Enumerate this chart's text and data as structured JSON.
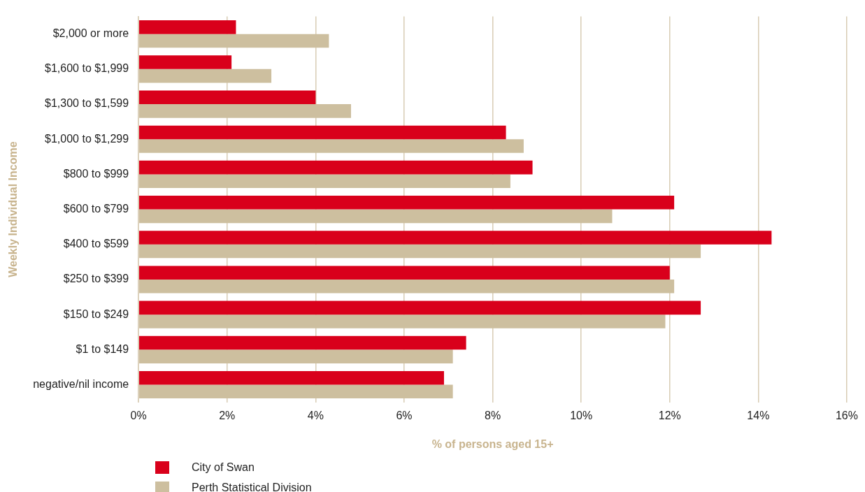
{
  "chart_data": {
    "type": "bar",
    "orientation": "horizontal",
    "ylabel": "Weekly Individual Income",
    "xlabel": "% of persons aged 15+",
    "categories": [
      "$2,000 or more",
      "$1,600 to $1,999",
      "$1,300 to $1,599",
      "$1,000 to $1,299",
      "$800 to $999",
      "$600 to $799",
      "$400 to $599",
      "$250 to $399",
      "$150 to $249",
      "$1 to $149",
      "negative/nil income"
    ],
    "series": [
      {
        "name": "City of Swan",
        "color": "#d9001b",
        "values": [
          2.2,
          2.1,
          4.0,
          8.3,
          8.9,
          12.1,
          14.3,
          12.0,
          12.7,
          7.4,
          6.9
        ]
      },
      {
        "name": "Perth Statistical Division",
        "color": "#cdbf9f",
        "values": [
          4.3,
          3.0,
          4.8,
          8.7,
          8.4,
          10.7,
          12.7,
          12.1,
          11.9,
          7.1,
          7.1
        ]
      }
    ],
    "xlim": [
      0,
      16
    ],
    "xticks": [
      {
        "value": 0,
        "label": "0%"
      },
      {
        "value": 2,
        "label": "2%"
      },
      {
        "value": 4,
        "label": "4%"
      },
      {
        "value": 6,
        "label": "6%"
      },
      {
        "value": 8,
        "label": "8%"
      },
      {
        "value": 10,
        "label": "10%"
      },
      {
        "value": 12,
        "label": "12%"
      },
      {
        "value": 14,
        "label": "14%"
      },
      {
        "value": 16,
        "label": "16%"
      }
    ],
    "grid": "x",
    "legend": "bottom left"
  }
}
